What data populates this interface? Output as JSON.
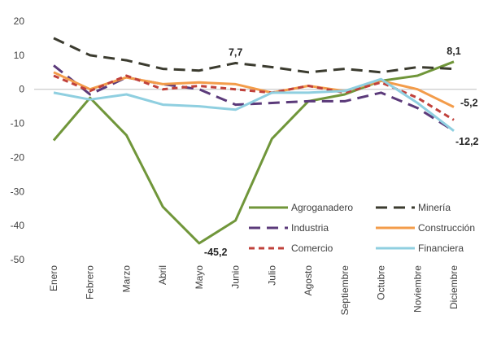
{
  "chart_data": {
    "type": "line",
    "categories": [
      "Enero",
      "Febrero",
      "Marzo",
      "Abril",
      "Mayo",
      "Junio",
      "Julio",
      "Agosto",
      "Septiembre",
      "Octubre",
      "Noviembre",
      "Diciembre"
    ],
    "ylim": [
      -50,
      20
    ],
    "yticks": [
      20,
      10,
      0,
      -10,
      -20,
      -30,
      -40,
      -50
    ],
    "grid": false,
    "legend_position": "bottom-right, inside plot",
    "series": [
      {
        "name": "Agroganadero",
        "color": "#70963a",
        "dash": "solid",
        "values": [
          -15,
          -2.5,
          -13.5,
          -34.5,
          -45.2,
          -38.5,
          -14.5,
          -3.5,
          -1.5,
          2.5,
          4,
          8.1
        ]
      },
      {
        "name": "Minería",
        "color": "#3b3b2f",
        "dash": "long-dash",
        "values": [
          15,
          10,
          8.5,
          6,
          5.5,
          7.7,
          6.5,
          5,
          6,
          5,
          6.5,
          6
        ]
      },
      {
        "name": "Industria",
        "color": "#5b3a7a",
        "dash": "long-dash",
        "values": [
          7,
          -1.5,
          3.5,
          1.5,
          0,
          -4.5,
          -4,
          -3.5,
          -3.5,
          -1,
          -5.5,
          -12.2
        ]
      },
      {
        "name": "Construcción",
        "color": "#f39c4a",
        "dash": "solid",
        "values": [
          5,
          0,
          3.5,
          1.5,
          2,
          1.5,
          -1,
          1,
          -0.5,
          2.5,
          0,
          -5.2
        ]
      },
      {
        "name": "Comercio",
        "color": "#c0413b",
        "dash": "short-dash",
        "values": [
          4,
          -0.5,
          4,
          0,
          1,
          0,
          -1,
          1,
          -1,
          2,
          -2.5,
          -9
        ]
      },
      {
        "name": "Financiera",
        "color": "#8fcfe0",
        "dash": "solid",
        "values": [
          -1,
          -3,
          -1.5,
          -4.5,
          -5,
          -6,
          -1,
          -1,
          -0.5,
          3,
          -4,
          -12.2
        ]
      }
    ],
    "annotations": [
      {
        "text": "7,7",
        "series": "Minería",
        "category": "Junio",
        "position": "above"
      },
      {
        "text": "8,1",
        "series": "Agroganadero",
        "category": "Diciembre",
        "position": "above"
      },
      {
        "text": "-45,2",
        "series": "Agroganadero",
        "category": "Mayo",
        "position": "right"
      },
      {
        "text": "-5,2",
        "series": "Construcción",
        "category": "Diciembre",
        "position": "right"
      },
      {
        "text": "-12,2",
        "series": "Financiera",
        "category": "Diciembre",
        "position": "right-below"
      }
    ]
  }
}
